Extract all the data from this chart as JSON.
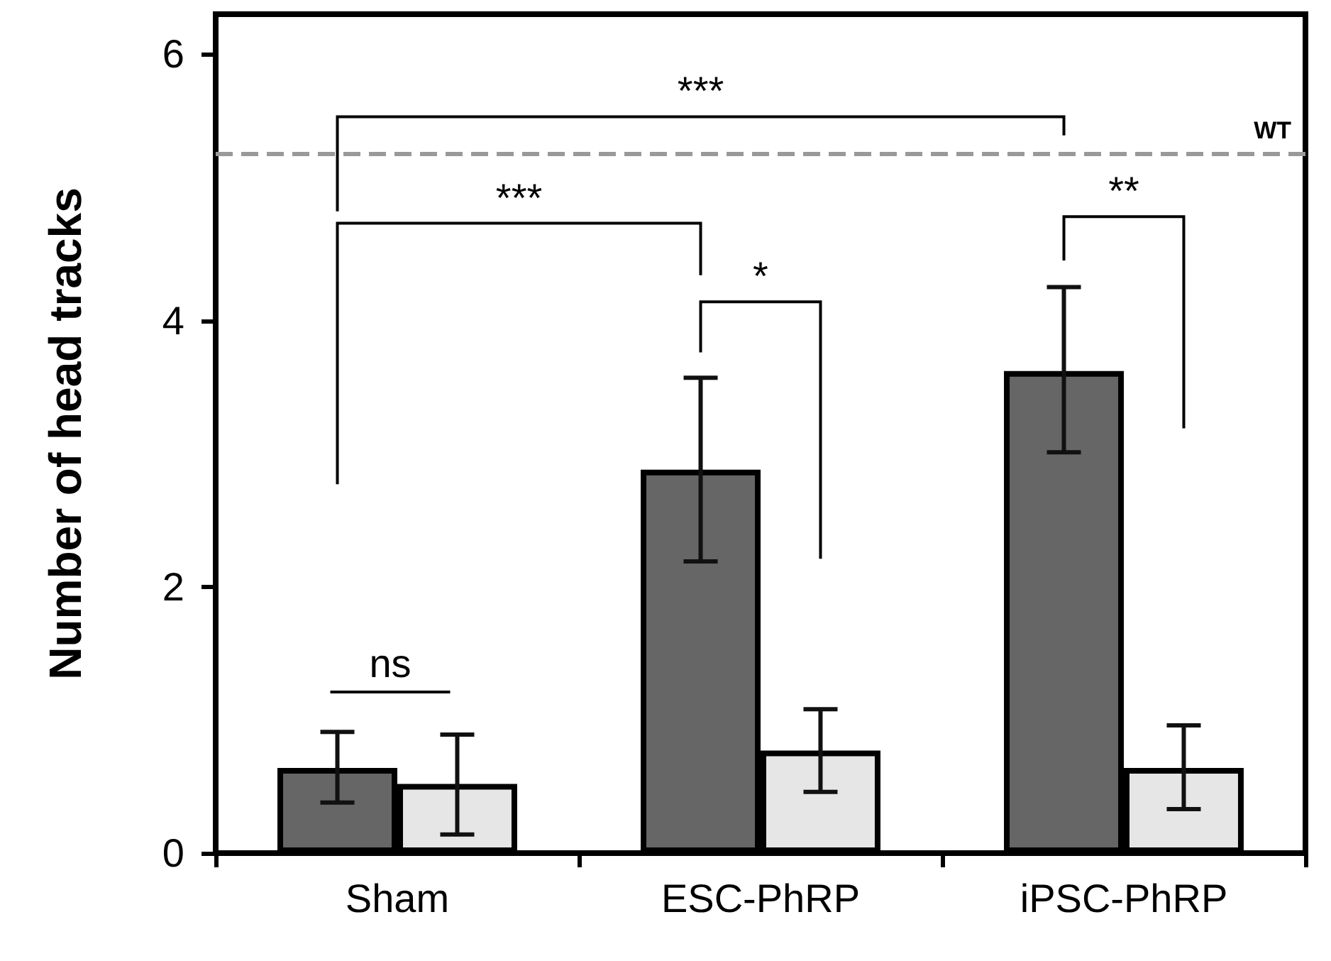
{
  "chart_data": {
    "type": "bar",
    "ylabel": "Number of head tracks",
    "categories": [
      "Sham",
      "ESC-PhRP",
      "iPSC-PhRP"
    ],
    "series": [
      {
        "color": "#666666",
        "values": [
          0.64,
          2.88,
          3.62
        ],
        "errors": [
          [
            0.38,
            0.91
          ],
          [
            2.19,
            3.57
          ],
          [
            3.01,
            4.25
          ]
        ]
      },
      {
        "color": "#e6e6e6",
        "values": [
          0.52,
          0.77,
          0.64
        ],
        "errors": [
          [
            0.14,
            0.89
          ],
          [
            0.46,
            1.08
          ],
          [
            0.33,
            0.96
          ]
        ]
      }
    ],
    "ylim": [
      0,
      6.3
    ],
    "yticks": [
      0,
      2,
      4,
      6
    ],
    "grid": false,
    "ref_lines": [
      {
        "axis": "y",
        "value": 5.25,
        "label": "WT",
        "color": "#999999",
        "line_style": "dashed"
      }
    ],
    "annotations": [
      "ns",
      "***",
      "*",
      "***",
      "**"
    ]
  }
}
